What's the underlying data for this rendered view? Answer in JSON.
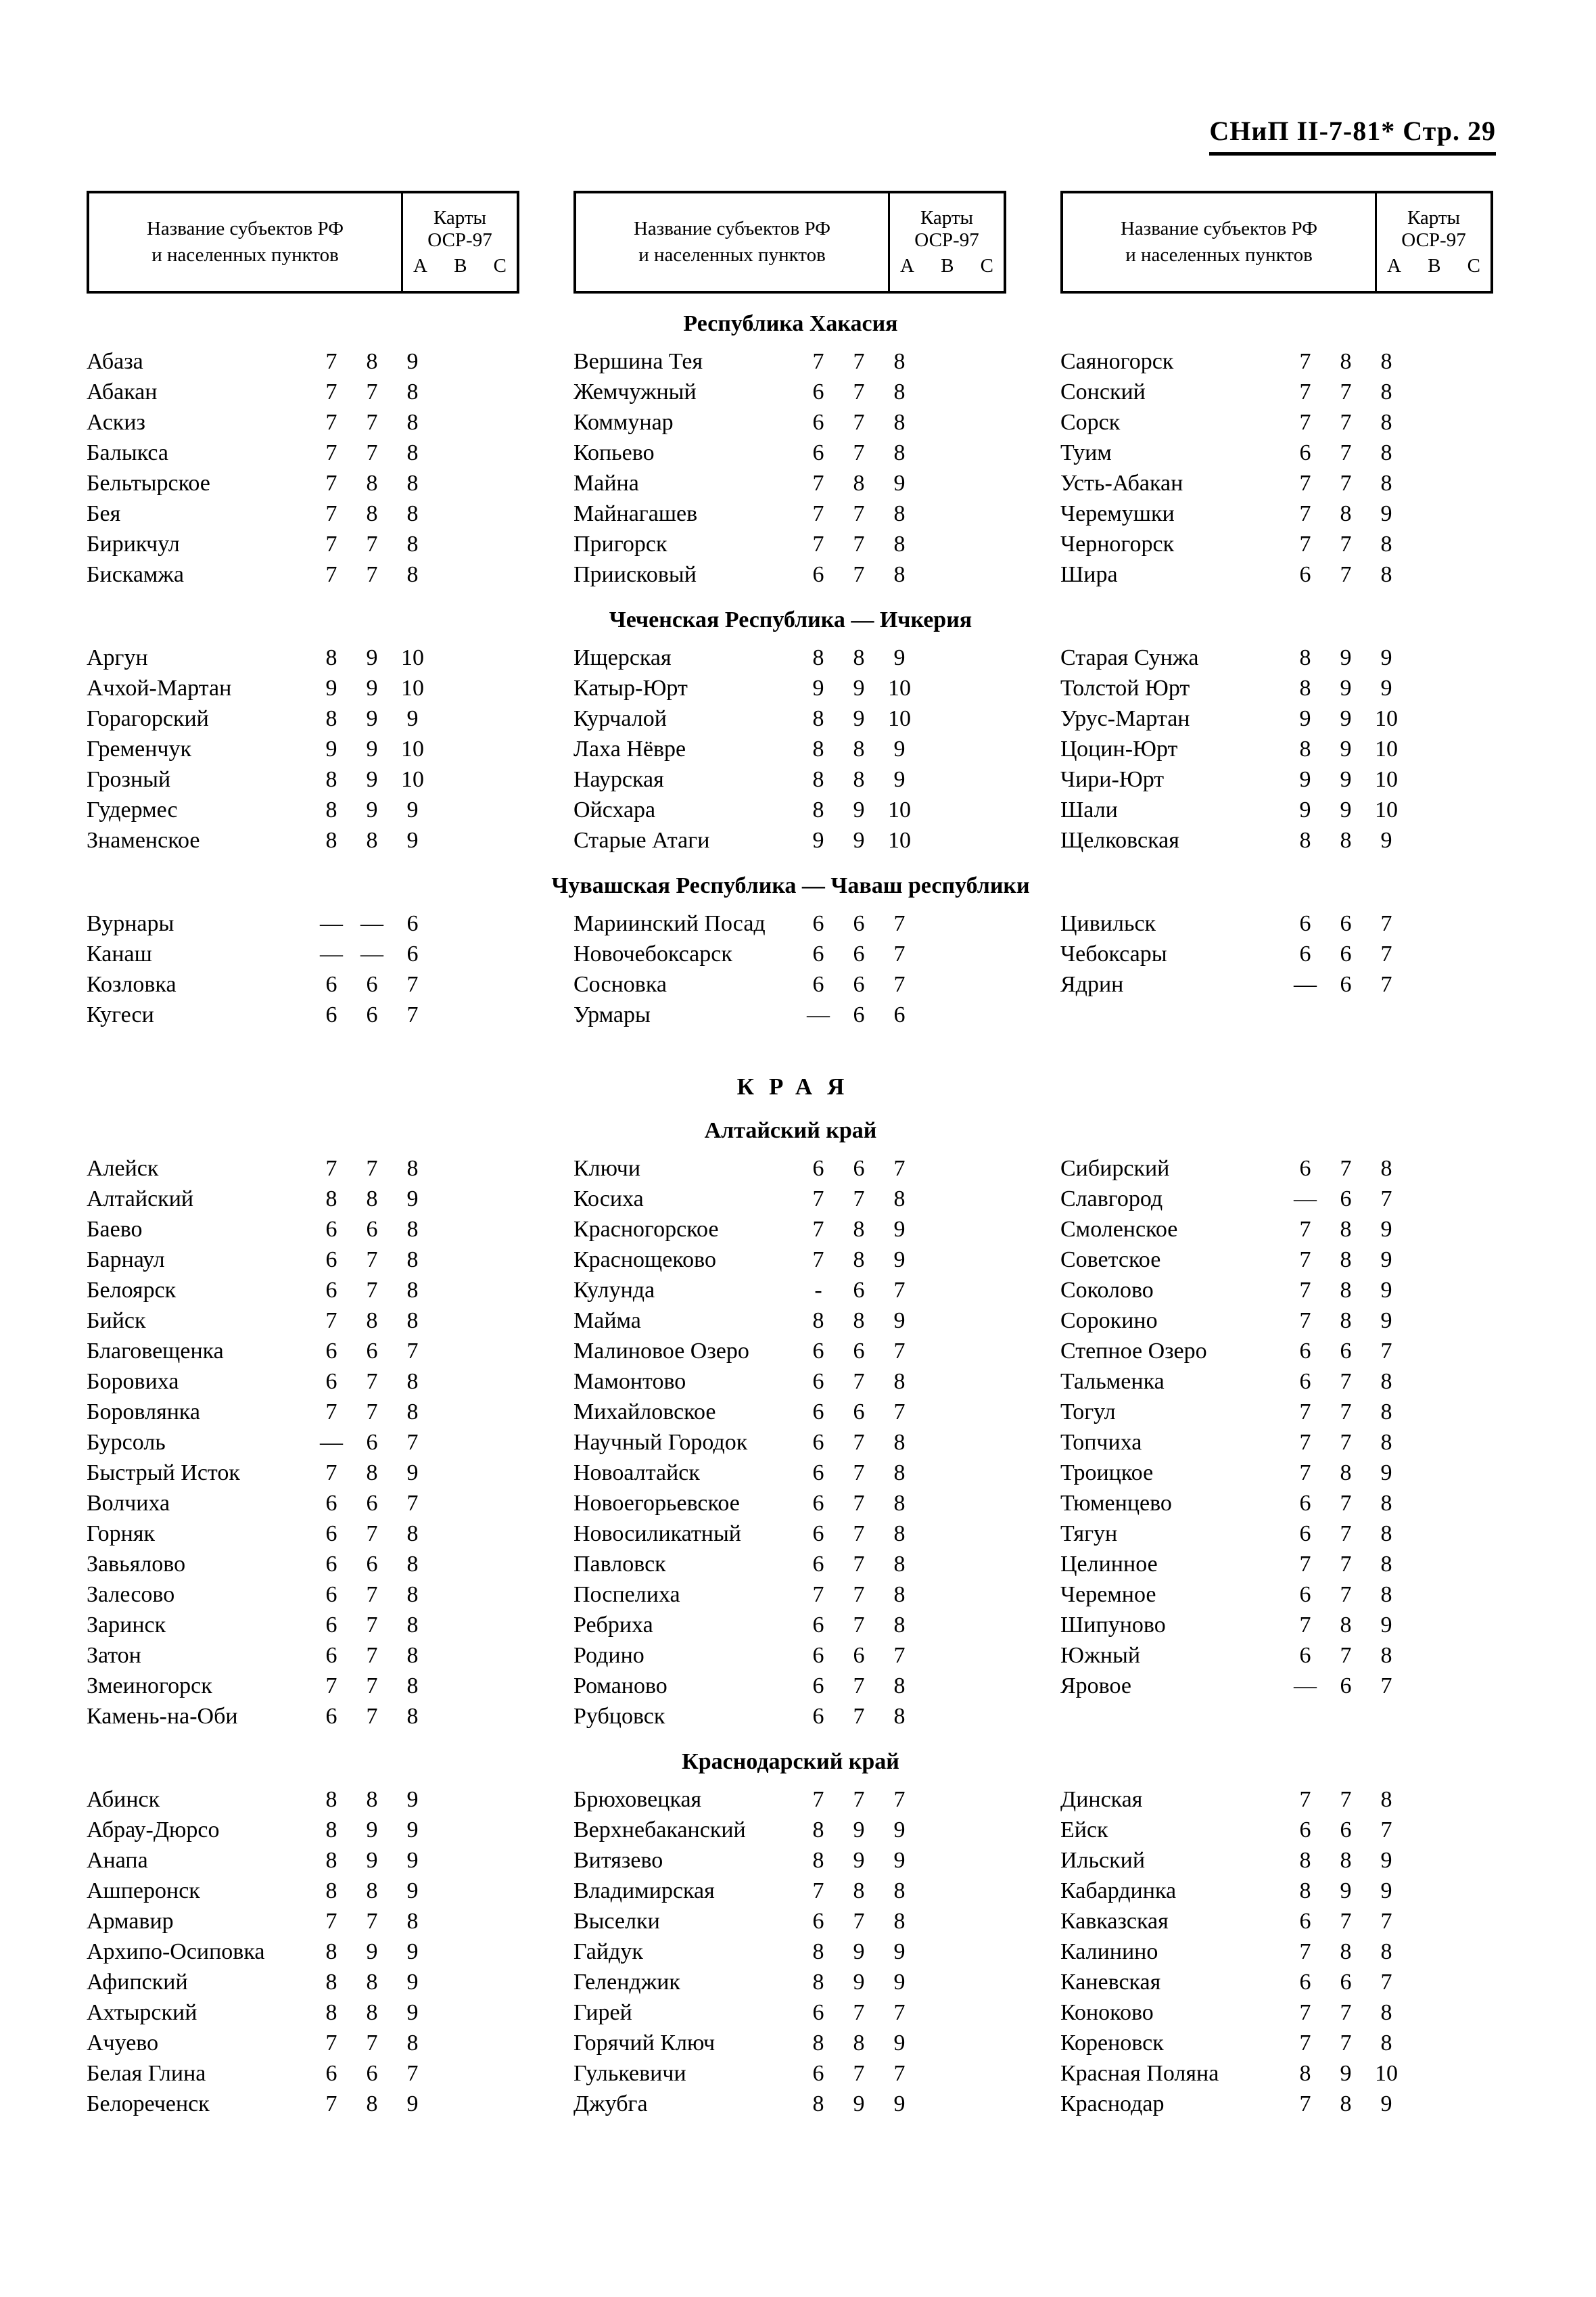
{
  "page_header": "СНиП II-7-81* Стр. 29",
  "colors": {
    "ink": "#000000",
    "paper": "#ffffff"
  },
  "table_header": {
    "name_line1": "Название субъектов РФ",
    "name_line2": "и населенных пунктов",
    "maps_line1": "Карты",
    "maps_line2": "ОСР-97",
    "map_columns": [
      "А",
      "В",
      "С"
    ]
  },
  "sections": [
    {
      "title": "Республика Хакасия",
      "columns": [
        [
          [
            "Абаза",
            "7",
            "8",
            "9"
          ],
          [
            "Абакан",
            "7",
            "7",
            "8"
          ],
          [
            "Аскиз",
            "7",
            "7",
            "8"
          ],
          [
            "Балыкса",
            "7",
            "7",
            "8"
          ],
          [
            "Бельтырское",
            "7",
            "8",
            "8"
          ],
          [
            "Бея",
            "7",
            "8",
            "8"
          ],
          [
            "Бирикчул",
            "7",
            "7",
            "8"
          ],
          [
            "Бискамжа",
            "7",
            "7",
            "8"
          ]
        ],
        [
          [
            "Вершина Тея",
            "7",
            "7",
            "8"
          ],
          [
            "Жемчужный",
            "6",
            "7",
            "8"
          ],
          [
            "Коммунар",
            "6",
            "7",
            "8"
          ],
          [
            "Копьево",
            "6",
            "7",
            "8"
          ],
          [
            "Майна",
            "7",
            "8",
            "9"
          ],
          [
            "Майнагашев",
            "7",
            "7",
            "8"
          ],
          [
            "Пригорск",
            "7",
            "7",
            "8"
          ],
          [
            "Приисковый",
            "6",
            "7",
            "8"
          ]
        ],
        [
          [
            "Саяногорск",
            "7",
            "8",
            "8"
          ],
          [
            "Сонский",
            "7",
            "7",
            "8"
          ],
          [
            "Сорск",
            "7",
            "7",
            "8"
          ],
          [
            "Туим",
            "6",
            "7",
            "8"
          ],
          [
            "Усть-Абакан",
            "7",
            "7",
            "8"
          ],
          [
            "Черемушки",
            "7",
            "8",
            "9"
          ],
          [
            "Черногорск",
            "7",
            "7",
            "8"
          ],
          [
            "Шира",
            "6",
            "7",
            "8"
          ]
        ]
      ]
    },
    {
      "title": "Чеченская Республика — Ичкерия",
      "columns": [
        [
          [
            "Аргун",
            "8",
            "9",
            "10"
          ],
          [
            "Ачхой-Мартан",
            "9",
            "9",
            "10"
          ],
          [
            "Горагорский",
            "8",
            "9",
            "9"
          ],
          [
            "Гременчук",
            "9",
            "9",
            "10"
          ],
          [
            "Грозный",
            "8",
            "9",
            "10"
          ],
          [
            "Гудермес",
            "8",
            "9",
            "9"
          ],
          [
            "Знаменское",
            "8",
            "8",
            "9"
          ]
        ],
        [
          [
            "Ищерская",
            "8",
            "8",
            "9"
          ],
          [
            "Катыр-Юрт",
            "9",
            "9",
            "10"
          ],
          [
            "Курчалой",
            "8",
            "9",
            "10"
          ],
          [
            "Лаха Нёвре",
            "8",
            "8",
            "9"
          ],
          [
            "Наурская",
            "8",
            "8",
            "9"
          ],
          [
            "Ойсхара",
            "8",
            "9",
            "10"
          ],
          [
            "Старые Атаги",
            "9",
            "9",
            "10"
          ]
        ],
        [
          [
            "Старая Сунжа",
            "8",
            "9",
            "9"
          ],
          [
            "Толстой Юрт",
            "8",
            "9",
            "9"
          ],
          [
            "Урус-Мартан",
            "9",
            "9",
            "10"
          ],
          [
            "Цоцин-Юрт",
            "8",
            "9",
            "10"
          ],
          [
            "Чири-Юрт",
            "9",
            "9",
            "10"
          ],
          [
            "Шали",
            "9",
            "9",
            "10"
          ],
          [
            "Щелковская",
            "8",
            "8",
            "9"
          ]
        ]
      ]
    },
    {
      "title": "Чувашская Республика — Чаваш республики",
      "columns": [
        [
          [
            "Вурнары",
            "—",
            "—",
            "6"
          ],
          [
            "Канаш",
            "—",
            "—",
            "6"
          ],
          [
            "Козловка",
            "6",
            "6",
            "7"
          ],
          [
            "Кугеси",
            "6",
            "6",
            "7"
          ]
        ],
        [
          [
            "Мариинский Посад",
            "6",
            "6",
            "7"
          ],
          [
            "Новочебоксарск",
            "6",
            "6",
            "7"
          ],
          [
            "Сосновка",
            "6",
            "6",
            "7"
          ],
          [
            "Урмары",
            "—",
            "6",
            "6"
          ]
        ],
        [
          [
            "Цивильск",
            "6",
            "6",
            "7"
          ],
          [
            "Чебоксары",
            "6",
            "6",
            "7"
          ],
          [
            "Ядрин",
            "—",
            "6",
            "7"
          ]
        ]
      ]
    },
    {
      "super_title": "КРАЯ",
      "title": "Алтайский край",
      "columns": [
        [
          [
            "Алейск",
            "7",
            "7",
            "8"
          ],
          [
            "Алтайский",
            "8",
            "8",
            "9"
          ],
          [
            "Баево",
            "6",
            "6",
            "8"
          ],
          [
            "Барнаул",
            "6",
            "7",
            "8"
          ],
          [
            "Белоярск",
            "6",
            "7",
            "8"
          ],
          [
            "Бийск",
            "7",
            "8",
            "8"
          ],
          [
            "Благовещенка",
            "6",
            "6",
            "7"
          ],
          [
            "Боровиха",
            "6",
            "7",
            "8"
          ],
          [
            "Боровлянка",
            "7",
            "7",
            "8"
          ],
          [
            "Бурсоль",
            "—",
            "6",
            "7"
          ],
          [
            "Быстрый Исток",
            "7",
            "8",
            "9"
          ],
          [
            "Волчиха",
            "6",
            "6",
            "7"
          ],
          [
            "Горняк",
            "6",
            "7",
            "8"
          ],
          [
            "Завьялово",
            "6",
            "6",
            "8"
          ],
          [
            "Залесово",
            "6",
            "7",
            "8"
          ],
          [
            "Заринск",
            "6",
            "7",
            "8"
          ],
          [
            "Затон",
            "6",
            "7",
            "8"
          ],
          [
            "Змеиногорск",
            "7",
            "7",
            "8"
          ],
          [
            "Камень-на-Оби",
            "6",
            "7",
            "8"
          ]
        ],
        [
          [
            "Ключи",
            "6",
            "6",
            "7"
          ],
          [
            "Косиха",
            "7",
            "7",
            "8"
          ],
          [
            "Красногорское",
            "7",
            "8",
            "9"
          ],
          [
            "Краснощеково",
            "7",
            "8",
            "9"
          ],
          [
            "Кулунда",
            "-",
            "6",
            "7"
          ],
          [
            "Майма",
            "8",
            "8",
            "9"
          ],
          [
            "Малиновое Озеро",
            "6",
            "6",
            "7"
          ],
          [
            "Мамонтово",
            "6",
            "7",
            "8"
          ],
          [
            "Михайловское",
            "6",
            "6",
            "7"
          ],
          [
            "Научный Городок",
            "6",
            "7",
            "8"
          ],
          [
            "Новоалтайск",
            "6",
            "7",
            "8"
          ],
          [
            "Новоегорьевское",
            "6",
            "7",
            "8"
          ],
          [
            "Новосиликатный",
            "6",
            "7",
            "8"
          ],
          [
            "Павловск",
            "6",
            "7",
            "8"
          ],
          [
            "Поспелиха",
            "7",
            "7",
            "8"
          ],
          [
            "Ребриха",
            "6",
            "7",
            "8"
          ],
          [
            "Родино",
            "6",
            "6",
            "7"
          ],
          [
            "Романово",
            "6",
            "7",
            "8"
          ],
          [
            "Рубцовск",
            "6",
            "7",
            "8"
          ]
        ],
        [
          [
            "Сибирский",
            "6",
            "7",
            "8"
          ],
          [
            "Славгород",
            "—",
            "6",
            "7"
          ],
          [
            "Смоленское",
            "7",
            "8",
            "9"
          ],
          [
            "Советское",
            "7",
            "8",
            "9"
          ],
          [
            "Соколово",
            "7",
            "8",
            "9"
          ],
          [
            "Сорокино",
            "7",
            "8",
            "9"
          ],
          [
            "Степное Озеро",
            "6",
            "6",
            "7"
          ],
          [
            "Тальменка",
            "6",
            "7",
            "8"
          ],
          [
            "Тогул",
            "7",
            "7",
            "8"
          ],
          [
            "Топчиха",
            "7",
            "7",
            "8"
          ],
          [
            "Троицкое",
            "7",
            "8",
            "9"
          ],
          [
            "Тюменцево",
            "6",
            "7",
            "8"
          ],
          [
            "Тягун",
            "6",
            "7",
            "8"
          ],
          [
            "Целинное",
            "7",
            "7",
            "8"
          ],
          [
            "Черемное",
            "6",
            "7",
            "8"
          ],
          [
            "Шипуново",
            "7",
            "8",
            "9"
          ],
          [
            "Южный",
            "6",
            "7",
            "8"
          ],
          [
            "Яровое",
            "—",
            "6",
            "7"
          ]
        ]
      ]
    },
    {
      "title": "Краснодарский край",
      "columns": [
        [
          [
            "Абинск",
            "8",
            "8",
            "9"
          ],
          [
            "Абрау-Дюрсо",
            "8",
            "9",
            "9"
          ],
          [
            "Анапа",
            "8",
            "9",
            "9"
          ],
          [
            "Ашперонск",
            "8",
            "8",
            "9"
          ],
          [
            "Армавир",
            "7",
            "7",
            "8"
          ],
          [
            "Архипо-Осиповка",
            "8",
            "9",
            "9"
          ],
          [
            "Афипский",
            "8",
            "8",
            "9"
          ],
          [
            "Ахтырский",
            "8",
            "8",
            "9"
          ],
          [
            "Ачуево",
            "7",
            "7",
            "8"
          ],
          [
            "Белая Глина",
            "6",
            "6",
            "7"
          ],
          [
            "Белореченск",
            "7",
            "8",
            "9"
          ]
        ],
        [
          [
            "Брюховецкая",
            "7",
            "7",
            "7"
          ],
          [
            "Верхнебаканский",
            "8",
            "9",
            "9"
          ],
          [
            "Витязево",
            "8",
            "9",
            "9"
          ],
          [
            "Владимирская",
            "7",
            "8",
            "8"
          ],
          [
            "Выселки",
            "6",
            "7",
            "8"
          ],
          [
            "Гайдук",
            "8",
            "9",
            "9"
          ],
          [
            "Геленджик",
            "8",
            "9",
            "9"
          ],
          [
            "Гирей",
            "6",
            "7",
            "7"
          ],
          [
            "Горячий Ключ",
            "8",
            "8",
            "9"
          ],
          [
            "Гулькевичи",
            "6",
            "7",
            "7"
          ],
          [
            "Джубга",
            "8",
            "9",
            "9"
          ]
        ],
        [
          [
            "Динская",
            "7",
            "7",
            "8"
          ],
          [
            "Ейск",
            "6",
            "6",
            "7"
          ],
          [
            "Ильский",
            "8",
            "8",
            "9"
          ],
          [
            "Кабардинка",
            "8",
            "9",
            "9"
          ],
          [
            "Кавказская",
            "6",
            "7",
            "7"
          ],
          [
            "Калинино",
            "7",
            "8",
            "8"
          ],
          [
            "Каневская",
            "6",
            "6",
            "7"
          ],
          [
            "Коноково",
            "7",
            "7",
            "8"
          ],
          [
            "Кореновск",
            "7",
            "7",
            "8"
          ],
          [
            "Красная Поляна",
            "8",
            "9",
            "10"
          ],
          [
            "Краснодар",
            "7",
            "8",
            "9"
          ]
        ]
      ]
    }
  ]
}
